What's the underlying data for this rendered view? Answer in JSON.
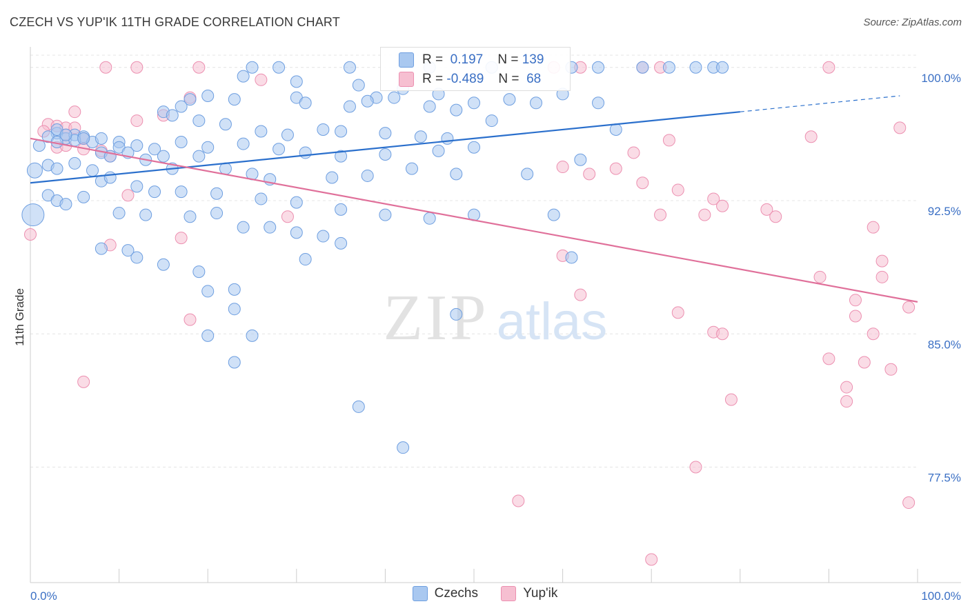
{
  "title": "CZECH VS YUP'IK 11TH GRADE CORRELATION CHART",
  "source": "Source: ZipAtlas.com",
  "watermark": {
    "zip": "ZIP",
    "atlas": "atlas"
  },
  "colors": {
    "czech_fill": "#a9c8f0",
    "czech_stroke": "#6d9ee0",
    "czech_line": "#2a6fcc",
    "yupik_fill": "#f6bfd1",
    "yupik_stroke": "#ec8fb0",
    "yupik_line": "#e0709a",
    "axis_label": "#3a6fc4",
    "grid": "#e4e4e4"
  },
  "stats": [
    {
      "r_label": "R =",
      "r_value": "0.197",
      "n_label": "N =",
      "n_value": "139"
    },
    {
      "r_label": "R =",
      "r_value": "-0.489",
      "n_label": "N =",
      "n_value": "68"
    }
  ],
  "chart_data": {
    "type": "scatter",
    "xlabel": "",
    "ylabel": "11th Grade",
    "xlim": [
      0,
      100
    ],
    "ylim": [
      71.0,
      101.0
    ],
    "x_tick_labels": [
      "0.0%",
      "100.0%"
    ],
    "y_ticks": [
      {
        "value": 100.0,
        "label": "100.0%"
      },
      {
        "value": 92.5,
        "label": "92.5%"
      },
      {
        "value": 85.0,
        "label": "85.0%"
      },
      {
        "value": 77.5,
        "label": "77.5%"
      }
    ],
    "grid": true,
    "legend_position": "bottom-center",
    "series": [
      {
        "name": "Czechs",
        "trend": {
          "x0": 0,
          "y0": 93.5,
          "x1": 80,
          "y1": 97.5,
          "dash_to_x": 98,
          "dash_to_y": 98.4
        },
        "points": [
          [
            25,
            100
          ],
          [
            28,
            100
          ],
          [
            36,
            100
          ],
          [
            45,
            100
          ],
          [
            52,
            100
          ],
          [
            61,
            100
          ],
          [
            64,
            100
          ],
          [
            69,
            100
          ],
          [
            72,
            100
          ],
          [
            75,
            100
          ],
          [
            77,
            100
          ],
          [
            78,
            100
          ],
          [
            24,
            99.5
          ],
          [
            30,
            99.2
          ],
          [
            37,
            99.0
          ],
          [
            42,
            98.8
          ],
          [
            46,
            98.5
          ],
          [
            39,
            98.3
          ],
          [
            50,
            98.0
          ],
          [
            54,
            98.2
          ],
          [
            57,
            98.0
          ],
          [
            60,
            98.5
          ],
          [
            64,
            98.0
          ],
          [
            18,
            98.2
          ],
          [
            20,
            98.4
          ],
          [
            23,
            98.2
          ],
          [
            30,
            98.3
          ],
          [
            31,
            98.0
          ],
          [
            36,
            97.8
          ],
          [
            38,
            98.1
          ],
          [
            41,
            98.3
          ],
          [
            45,
            97.8
          ],
          [
            48,
            97.6
          ],
          [
            15,
            97.5
          ],
          [
            17,
            97.8
          ],
          [
            16,
            97.3
          ],
          [
            19,
            97.0
          ],
          [
            22,
            96.8
          ],
          [
            26,
            96.4
          ],
          [
            29,
            96.2
          ],
          [
            33,
            96.5
          ],
          [
            35,
            96.4
          ],
          [
            40,
            96.3
          ],
          [
            44,
            96.1
          ],
          [
            47,
            96.0
          ],
          [
            52,
            97.0
          ],
          [
            66,
            96.5
          ],
          [
            3,
            96.3
          ],
          [
            4,
            96.0
          ],
          [
            5,
            96.2
          ],
          [
            6,
            96.1
          ],
          [
            7,
            95.8
          ],
          [
            10,
            95.8
          ],
          [
            12,
            95.6
          ],
          [
            14,
            95.4
          ],
          [
            15,
            95.0
          ],
          [
            17,
            95.8
          ],
          [
            20,
            95.5
          ],
          [
            24,
            95.7
          ],
          [
            28,
            95.4
          ],
          [
            31,
            95.2
          ],
          [
            35,
            95.0
          ],
          [
            40,
            95.1
          ],
          [
            46,
            95.3
          ],
          [
            50,
            95.5
          ],
          [
            62,
            94.8
          ],
          [
            1,
            95.6
          ],
          [
            2,
            96.1
          ],
          [
            3,
            95.8
          ],
          [
            5,
            95.9
          ],
          [
            6,
            96.0
          ],
          [
            8,
            95.2
          ],
          [
            9,
            95.0
          ],
          [
            10,
            95.5
          ],
          [
            11,
            95.2
          ],
          [
            13,
            94.8
          ],
          [
            16,
            94.3
          ],
          [
            19,
            95.0
          ],
          [
            22,
            94.3
          ],
          [
            25,
            94.0
          ],
          [
            27,
            93.7
          ],
          [
            34,
            93.8
          ],
          [
            38,
            93.9
          ],
          [
            43,
            94.3
          ],
          [
            48,
            94.0
          ],
          [
            56,
            94.0
          ],
          [
            0.5,
            94.2
          ],
          [
            2,
            94.5
          ],
          [
            3,
            94.3
          ],
          [
            5,
            94.6
          ],
          [
            7,
            94.2
          ],
          [
            8,
            93.6
          ],
          [
            9,
            93.8
          ],
          [
            12,
            93.3
          ],
          [
            14,
            93.0
          ],
          [
            17,
            93.0
          ],
          [
            21,
            92.9
          ],
          [
            26,
            92.6
          ],
          [
            30,
            92.4
          ],
          [
            35,
            92.0
          ],
          [
            40,
            91.7
          ],
          [
            45,
            91.5
          ],
          [
            50,
            91.7
          ],
          [
            59,
            91.7
          ],
          [
            0.3,
            91.7
          ],
          [
            2,
            92.8
          ],
          [
            3,
            92.5
          ],
          [
            4,
            92.3
          ],
          [
            6,
            92.7
          ],
          [
            10,
            91.8
          ],
          [
            13,
            91.7
          ],
          [
            18,
            91.6
          ],
          [
            21,
            91.8
          ],
          [
            24,
            91.0
          ],
          [
            27,
            91.0
          ],
          [
            30,
            90.7
          ],
          [
            33,
            90.5
          ],
          [
            35,
            90.1
          ],
          [
            8,
            89.8
          ],
          [
            11,
            89.7
          ],
          [
            12,
            89.3
          ],
          [
            15,
            88.9
          ],
          [
            19,
            88.5
          ],
          [
            23,
            87.5
          ],
          [
            31,
            89.2
          ],
          [
            61,
            89.3
          ],
          [
            20,
            87.4
          ],
          [
            23,
            86.4
          ],
          [
            48,
            86.1
          ],
          [
            20,
            84.9
          ],
          [
            25,
            84.9
          ],
          [
            23,
            83.4
          ],
          [
            37,
            80.9
          ],
          [
            42,
            78.6
          ],
          [
            3,
            96.5
          ],
          [
            4,
            96.2
          ],
          [
            8,
            96.0
          ]
        ]
      },
      {
        "name": "Yup'ik",
        "trend": {
          "x0": 0,
          "y0": 96.0,
          "x1": 100,
          "y1": 86.8
        },
        "points": [
          [
            8.5,
            100
          ],
          [
            12,
            100
          ],
          [
            19,
            100
          ],
          [
            59,
            100
          ],
          [
            62,
            100
          ],
          [
            69,
            100
          ],
          [
            71,
            100
          ],
          [
            90,
            100
          ],
          [
            26,
            99.3
          ],
          [
            18,
            98.3
          ],
          [
            5,
            97.5
          ],
          [
            12,
            97.0
          ],
          [
            15,
            97.3
          ],
          [
            2,
            96.8
          ],
          [
            3,
            96.7
          ],
          [
            4,
            96.6
          ],
          [
            5,
            96.6
          ],
          [
            1.5,
            96.4
          ],
          [
            4,
            96.2
          ],
          [
            6,
            96.0
          ],
          [
            88,
            96.1
          ],
          [
            72,
            95.9
          ],
          [
            68,
            95.2
          ],
          [
            3,
            95.5
          ],
          [
            4,
            95.6
          ],
          [
            6,
            95.4
          ],
          [
            8,
            95.3
          ],
          [
            9,
            95.0
          ],
          [
            60,
            94.4
          ],
          [
            63,
            94.0
          ],
          [
            66,
            94.3
          ],
          [
            69,
            93.5
          ],
          [
            73,
            93.1
          ],
          [
            77,
            92.6
          ],
          [
            78,
            92.2
          ],
          [
            83,
            92.0
          ],
          [
            11,
            92.8
          ],
          [
            29,
            91.6
          ],
          [
            71,
            91.7
          ],
          [
            76,
            91.7
          ],
          [
            84,
            91.6
          ],
          [
            95,
            91.0
          ],
          [
            96,
            89.1
          ],
          [
            0,
            90.6
          ],
          [
            9,
            90.0
          ],
          [
            17,
            90.4
          ],
          [
            60,
            89.4
          ],
          [
            98,
            96.6
          ],
          [
            96,
            88.2
          ],
          [
            89,
            88.2
          ],
          [
            62,
            87.2
          ],
          [
            93,
            86.9
          ],
          [
            93,
            86.0
          ],
          [
            73,
            86.2
          ],
          [
            99,
            86.5
          ],
          [
            18,
            85.8
          ],
          [
            95,
            85.0
          ],
          [
            77,
            85.1
          ],
          [
            97,
            83.0
          ],
          [
            78,
            85.0
          ],
          [
            90,
            83.6
          ],
          [
            94,
            83.4
          ],
          [
            92,
            82.0
          ],
          [
            92,
            81.2
          ],
          [
            79,
            81.3
          ],
          [
            6,
            82.3
          ],
          [
            75,
            77.5
          ],
          [
            55,
            75.6
          ],
          [
            99,
            75.5
          ],
          [
            70,
            72.3
          ]
        ]
      }
    ]
  }
}
